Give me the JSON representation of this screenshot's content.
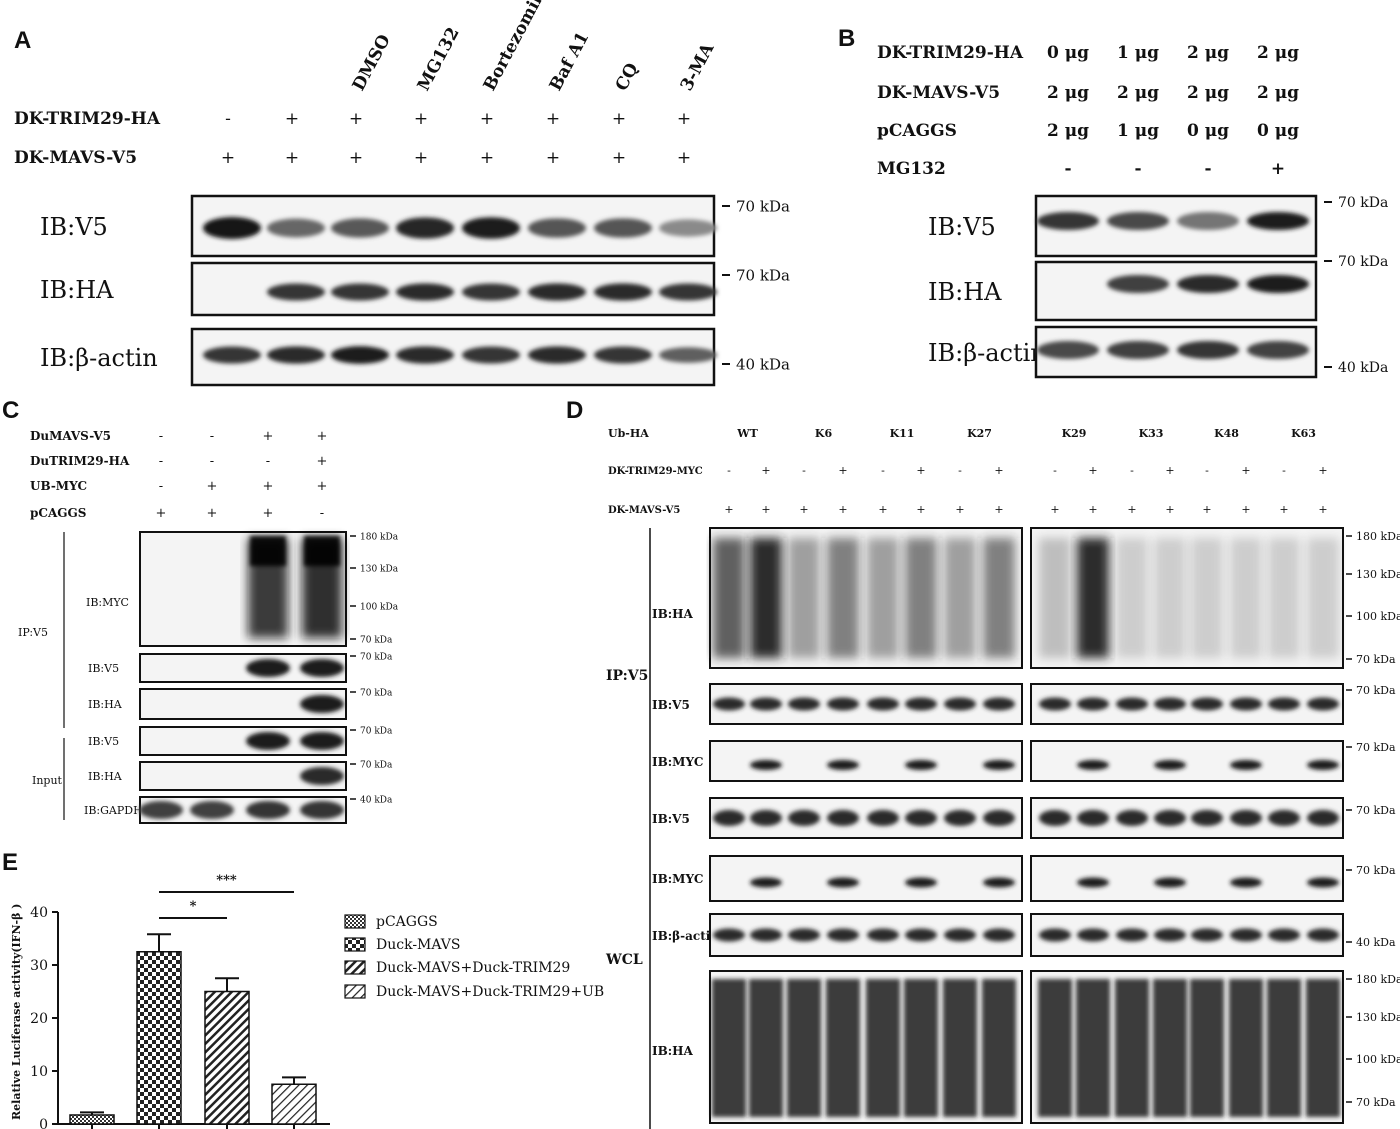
{
  "panelA": {
    "letter": "A",
    "treatments": [
      "DMSO",
      "MG132",
      "Bortezomib",
      "Baf A1",
      "CQ",
      "3-MA"
    ],
    "rows": [
      {
        "label": "DK-TRIM29-HA",
        "values": [
          "-",
          "+",
          "+",
          "+",
          "+",
          "+",
          "+",
          "+"
        ]
      },
      {
        "label": "DK-MAVS-V5",
        "values": [
          "+",
          "+",
          "+",
          "+",
          "+",
          "+",
          "+",
          "+"
        ]
      }
    ],
    "blots": [
      {
        "label": "IB:V5",
        "marker": "70 kDa",
        "bands": [
          1.0,
          0.62,
          0.68,
          0.92,
          0.95,
          0.7,
          0.7,
          0.45
        ]
      },
      {
        "label": "IB:HA",
        "marker": "70 kDa",
        "bands": [
          0,
          0.85,
          0.85,
          0.9,
          0.85,
          0.9,
          0.9,
          0.85
        ]
      },
      {
        "label": "IB:β-actin",
        "marker": "40 kDa",
        "bands": [
          0.85,
          0.9,
          0.95,
          0.9,
          0.85,
          0.9,
          0.85,
          0.65
        ]
      }
    ]
  },
  "panelB": {
    "letter": "B",
    "rows": [
      {
        "label": "DK-TRIM29-HA",
        "values": [
          "0 μg",
          "1 μg",
          "2 μg",
          "2 μg"
        ]
      },
      {
        "label": "DK-MAVS-V5",
        "values": [
          "2 μg",
          "2 μg",
          "2 μg",
          "2 μg"
        ]
      },
      {
        "label": "pCAGGS",
        "values": [
          "2 μg",
          "1 μg",
          "0 μg",
          "0 μg"
        ]
      },
      {
        "label": "MG132",
        "values": [
          "-",
          "-",
          "-",
          "+"
        ]
      }
    ],
    "blots": [
      {
        "label": "IB:V5",
        "marker": "70 kDa",
        "bands": [
          0.85,
          0.75,
          0.55,
          0.95
        ]
      },
      {
        "label": "IB:HA",
        "marker": "70 kDa",
        "bands": [
          0,
          0.8,
          0.9,
          0.95
        ]
      },
      {
        "label": "IB:β-actin",
        "marker": "40 kDa",
        "bands": [
          0.75,
          0.8,
          0.85,
          0.78
        ]
      }
    ]
  },
  "panelC": {
    "letter": "C",
    "rows": [
      {
        "label": "DuMAVS-V5",
        "values": [
          "-",
          "-",
          "+",
          "+"
        ]
      },
      {
        "label": "DuTRIM29-HA",
        "values": [
          "-",
          "-",
          "-",
          "+"
        ]
      },
      {
        "label": "UB-MYC",
        "values": [
          "-",
          "+",
          "+",
          "+"
        ]
      },
      {
        "label": "pCAGGS",
        "values": [
          "+",
          "+",
          "+",
          "-"
        ]
      }
    ],
    "group_labels": [
      "IP:V5",
      "Input"
    ],
    "blots": [
      {
        "label": "IB:MYC",
        "markers": [
          "180 kDa",
          "130 kDa",
          "100 kDa",
          "70 kDa"
        ],
        "smear": [
          0,
          0,
          0.9,
          1.0
        ]
      },
      {
        "label": "IB:V5",
        "markers": [
          "70 kDa"
        ],
        "bands": [
          0,
          0,
          0.95,
          0.95
        ]
      },
      {
        "label": "IB:HA",
        "markers": [
          "70 kDa"
        ],
        "bands": [
          0,
          0,
          0,
          0.95
        ]
      },
      {
        "label": "IB:V5",
        "markers": [
          "70 kDa"
        ],
        "bands": [
          0,
          0,
          0.95,
          0.95
        ]
      },
      {
        "label": "IB:HA",
        "markers": [
          "70 kDa"
        ],
        "bands": [
          0,
          0,
          0,
          0.9
        ]
      },
      {
        "label": "IB:GAPDH",
        "markers": [
          "40 kDa"
        ],
        "bands": [
          0.8,
          0.8,
          0.85,
          0.85
        ]
      }
    ]
  },
  "panelD": {
    "letter": "D",
    "ub_label": "Ub-HA",
    "ub_types": [
      "WT",
      "K6",
      "K11",
      "K27",
      "K29",
      "K33",
      "K48",
      "K63"
    ],
    "rows": [
      {
        "label": "DK-TRIM29-MYC",
        "values": [
          "-",
          "+",
          "-",
          "+",
          "-",
          "+",
          "-",
          "+",
          "-",
          "+",
          "-",
          "+",
          "-",
          "+",
          "-",
          "+"
        ]
      },
      {
        "label": "DK-MAVS-V5",
        "values": [
          "+",
          "+",
          "+",
          "+",
          "+",
          "+",
          "+",
          "+",
          "+",
          "+",
          "+",
          "+",
          "+",
          "+",
          "+",
          "+"
        ]
      }
    ],
    "group_labels": [
      "IP:V5",
      "WCL"
    ],
    "blots": [
      {
        "label": "IB:HA",
        "markers": [
          "180 kDa",
          "130 kDa",
          "100 kDa",
          "70 kDa"
        ]
      },
      {
        "label": "IB:V5",
        "markers": [
          "70 kDa"
        ]
      },
      {
        "label": "IB:MYC",
        "markers": [
          "70 kDa"
        ]
      },
      {
        "label": "IB:V5",
        "markers": [
          "70 kDa"
        ]
      },
      {
        "label": "IB:MYC",
        "markers": [
          "70 kDa"
        ]
      },
      {
        "label": "IB:β-actin",
        "markers": [
          "40 kDa"
        ]
      },
      {
        "label": "IB:HA",
        "markers": [
          "180 kDa",
          "130 kDa",
          "100 kDa",
          "70 kDa"
        ]
      }
    ]
  },
  "panelE": {
    "letter": "E",
    "chart_data": {
      "type": "bar",
      "title": "",
      "xlabel": "",
      "ylabel": "Relative Luciferase activity(IFN-β )",
      "ylim": [
        0,
        40
      ],
      "yticks": [
        0,
        10,
        20,
        30,
        40
      ],
      "categories": [
        "pCAGGS",
        "Duck-MAVS",
        "Duck-MAVS+Duck-TRIM29",
        "Duck-MAVS+Duck-TRIM29+UB"
      ],
      "values": [
        1.7,
        32.5,
        25.0,
        7.5
      ],
      "errors": [
        0.5,
        3.3,
        2.5,
        1.3
      ],
      "legend_position": "right",
      "significance": [
        {
          "from": 1,
          "to": 2,
          "label": "*"
        },
        {
          "from": 1,
          "to": 3,
          "label": "***"
        }
      ]
    }
  }
}
